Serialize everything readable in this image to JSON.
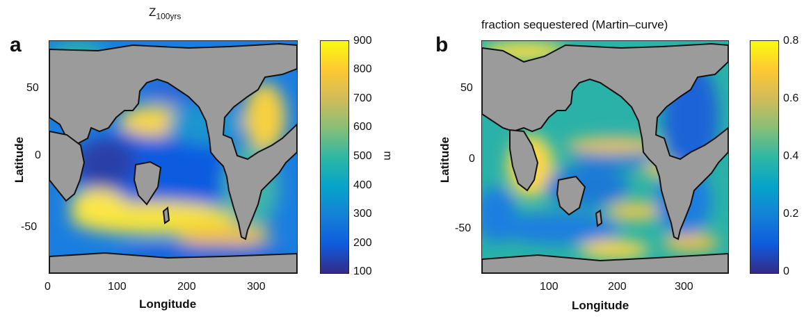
{
  "chart_data": [
    {
      "type": "heatmap",
      "panel_label": "a",
      "title_main": "Z",
      "title_sub": "100yrs",
      "xlabel": "Longitude",
      "ylabel": "Latitude",
      "xlim": [
        0,
        360
      ],
      "ylim": [
        -80,
        90
      ],
      "xticks": [
        "0",
        "100",
        "200",
        "300"
      ],
      "yticks": [
        "50",
        "0",
        "-50"
      ],
      "colorbar": {
        "range": [
          100,
          900
        ],
        "ticks": [
          "900",
          "800",
          "700",
          "600",
          "500",
          "400",
          "300",
          "200",
          "100"
        ],
        "unit": "m"
      }
    },
    {
      "type": "heatmap",
      "panel_label": "b",
      "title": "fraction sequestered (Martin–curve)",
      "xlabel": "Longitude",
      "ylabel": "Latitude",
      "xlim": [
        0,
        360
      ],
      "ylim": [
        -80,
        90
      ],
      "xticks": [
        "100",
        "200",
        "300"
      ],
      "yticks": [
        "50",
        "0",
        "-50"
      ],
      "colorbar": {
        "range": [
          0,
          0.8
        ],
        "ticks": [
          "0.8",
          "0.6",
          "0.4",
          "0.2",
          "0"
        ],
        "unit": ""
      }
    }
  ],
  "colors": {
    "land": "#9b9b9b",
    "colormap": [
      "#352a87",
      "#0f5cdd",
      "#1481d6",
      "#06a4ca",
      "#2eb7a4",
      "#87bf77",
      "#d1bb59",
      "#fec832",
      "#f9fb0e"
    ]
  }
}
